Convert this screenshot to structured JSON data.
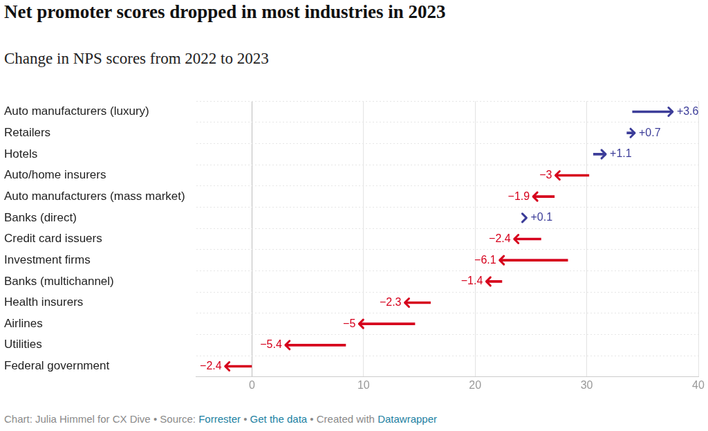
{
  "chart_data": {
    "type": "arrow",
    "title": "Net promoter scores dropped in most industries in 2023",
    "subtitle": "Change in NPS scores from 2022 to 2023",
    "orientation": "horizontal",
    "categories": [
      "Auto manufacturers (luxury)",
      "Retailers",
      "Hotels",
      "Auto/home insurers",
      "Auto manufacturers (mass market)",
      "Banks (direct)",
      "Credit card issuers",
      "Investment firms",
      "Banks (multichannel)",
      "Health insurers",
      "Airlines",
      "Utilities",
      "Federal government"
    ],
    "values_2022": [
      34.1,
      33.6,
      30.6,
      30.2,
      27.1,
      24.5,
      25.9,
      28.3,
      22.4,
      16.0,
      14.6,
      8.4,
      0.0
    ],
    "changes": [
      3.6,
      0.7,
      1.1,
      -3,
      -1.9,
      0.1,
      -2.4,
      -6.1,
      -1.4,
      -2.3,
      -5,
      -5.4,
      -2.4
    ],
    "change_labels": [
      "+3.6",
      "+0.7",
      "+1.1",
      "−3",
      "−1.9",
      "+0.1",
      "−2.4",
      "−6.1",
      "−1.4",
      "−2.3",
      "−5",
      "−5.4",
      "−2.4"
    ],
    "colors": [
      "#3c3d99",
      "#3c3d99",
      "#3c3d99",
      "#d6001c",
      "#d6001c",
      "#3c3d99",
      "#d6001c",
      "#d6001c",
      "#d6001c",
      "#d6001c",
      "#d6001c",
      "#d6001c",
      "#d6001c"
    ],
    "xlim": [
      -5,
      40
    ],
    "xticks": [
      0,
      10,
      20,
      30,
      40
    ],
    "grid": true,
    "data_labels": true,
    "footer": [
      {
        "text": "Chart: Julia Himmel for CX Dive • Source: ",
        "link": false
      },
      {
        "text": "Forrester",
        "link": true
      },
      {
        "text": " • ",
        "link": false
      },
      {
        "text": "Get the data",
        "link": true
      },
      {
        "text": " • Created with ",
        "link": false
      },
      {
        "text": "Datawrapper",
        "link": true
      }
    ]
  }
}
